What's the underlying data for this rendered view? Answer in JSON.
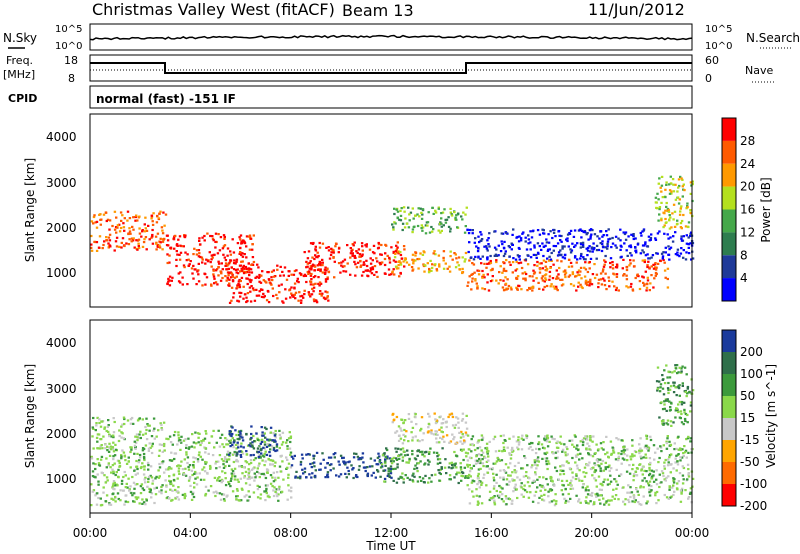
{
  "header": {
    "title": "Christmas Valley West (fitACF)",
    "beam": "Beam 13",
    "date": "11/Jun/2012"
  },
  "top_panels": {
    "nsky_label": "N.Sky",
    "nsky_ticks": [
      "10^5",
      "10^0"
    ],
    "nsearch_label": "N.Search",
    "nsearch_ticks": [
      "10^5",
      "10^0"
    ],
    "freq_label": "Freq.",
    "freq_unit": "[MHz]",
    "freq_ticks": [
      "18",
      "8"
    ],
    "nave_label": "Nave",
    "nave_ticks": [
      "60",
      "0"
    ],
    "cpid_label": "CPID",
    "cpid_value": "normal (fast) -151 IF"
  },
  "colors": {
    "power": [
      "#0000ff",
      "#1f3a99",
      "#2e7d4f",
      "#45a84a",
      "#b4e01e",
      "#ff9900",
      "#ff5a00",
      "#ff0000"
    ],
    "velocity": [
      "#1a3a9c",
      "#2f6f4a",
      "#3c9a3c",
      "#8ad84a",
      "#c8c8c8",
      "#ffa500",
      "#ff6a00",
      "#ff0000"
    ]
  },
  "chart_data": [
    {
      "type": "heatmap",
      "name": "power",
      "ylabel": "Slant Range [km]",
      "yticks": [
        "4000",
        "3000",
        "2000",
        "1000"
      ],
      "ylim": [
        200,
        4600
      ],
      "colorbar_label": "Power [dB]",
      "colorbar_ticks": [
        "28",
        "24",
        "20",
        "16",
        "12",
        "8",
        "4"
      ],
      "regions": [
        {
          "t0": 0.0,
          "t1": 3.0,
          "r0": 1500,
          "r1": 2400,
          "level": 6
        },
        {
          "t0": 3.0,
          "t1": 6.5,
          "r0": 700,
          "r1": 1900,
          "level": 7
        },
        {
          "t0": 5.5,
          "t1": 9.5,
          "r0": 300,
          "r1": 1200,
          "level": 7
        },
        {
          "t0": 8.5,
          "t1": 12.5,
          "r0": 900,
          "r1": 1700,
          "level": 7
        },
        {
          "t0": 12.0,
          "t1": 15.0,
          "r0": 1000,
          "r1": 1500,
          "level": 5
        },
        {
          "t0": 12.0,
          "t1": 15.0,
          "r0": 1900,
          "r1": 2500,
          "level": 3
        },
        {
          "t0": 15.0,
          "t1": 23.0,
          "r0": 600,
          "r1": 1300,
          "level": 6
        },
        {
          "t0": 15.0,
          "t1": 24.0,
          "r0": 1300,
          "r1": 2000,
          "level": 0
        },
        {
          "t0": 22.5,
          "t1": 24.0,
          "r0": 2000,
          "r1": 3200,
          "level": 4
        }
      ]
    },
    {
      "type": "heatmap",
      "name": "velocity",
      "ylabel": "Slant Range [km]",
      "yticks": [
        "4000",
        "3000",
        "2000",
        "1000"
      ],
      "ylim": [
        200,
        4600
      ],
      "colorbar_label": "Velocity [m s^-1]",
      "colorbar_ticks": [
        "200",
        "100",
        "50",
        "15",
        "-15",
        "-50",
        "-100",
        "-200"
      ],
      "regions": [
        {
          "t0": 0.0,
          "t1": 3.0,
          "r0": 400,
          "r1": 2400,
          "level": 4
        },
        {
          "t0": 3.0,
          "t1": 8.0,
          "r0": 500,
          "r1": 2100,
          "level": 4
        },
        {
          "t0": 5.5,
          "t1": 7.5,
          "r0": 1500,
          "r1": 2200,
          "level": 7
        },
        {
          "t0": 8.0,
          "t1": 12.0,
          "r0": 1000,
          "r1": 1600,
          "level": 7
        },
        {
          "t0": 11.5,
          "t1": 15.0,
          "r0": 900,
          "r1": 1700,
          "level": 5
        },
        {
          "t0": 12.0,
          "t1": 15.0,
          "r0": 1800,
          "r1": 2500,
          "level": 3
        },
        {
          "t0": 15.0,
          "t1": 24.0,
          "r0": 400,
          "r1": 2000,
          "level": 4
        },
        {
          "t0": 22.5,
          "t1": 24.0,
          "r0": 2200,
          "r1": 3600,
          "level": 5
        }
      ]
    }
  ],
  "xaxis": {
    "label": "Time UT",
    "ticks": [
      "00:00",
      "04:00",
      "08:00",
      "12:00",
      "16:00",
      "20:00",
      "00:00"
    ]
  }
}
